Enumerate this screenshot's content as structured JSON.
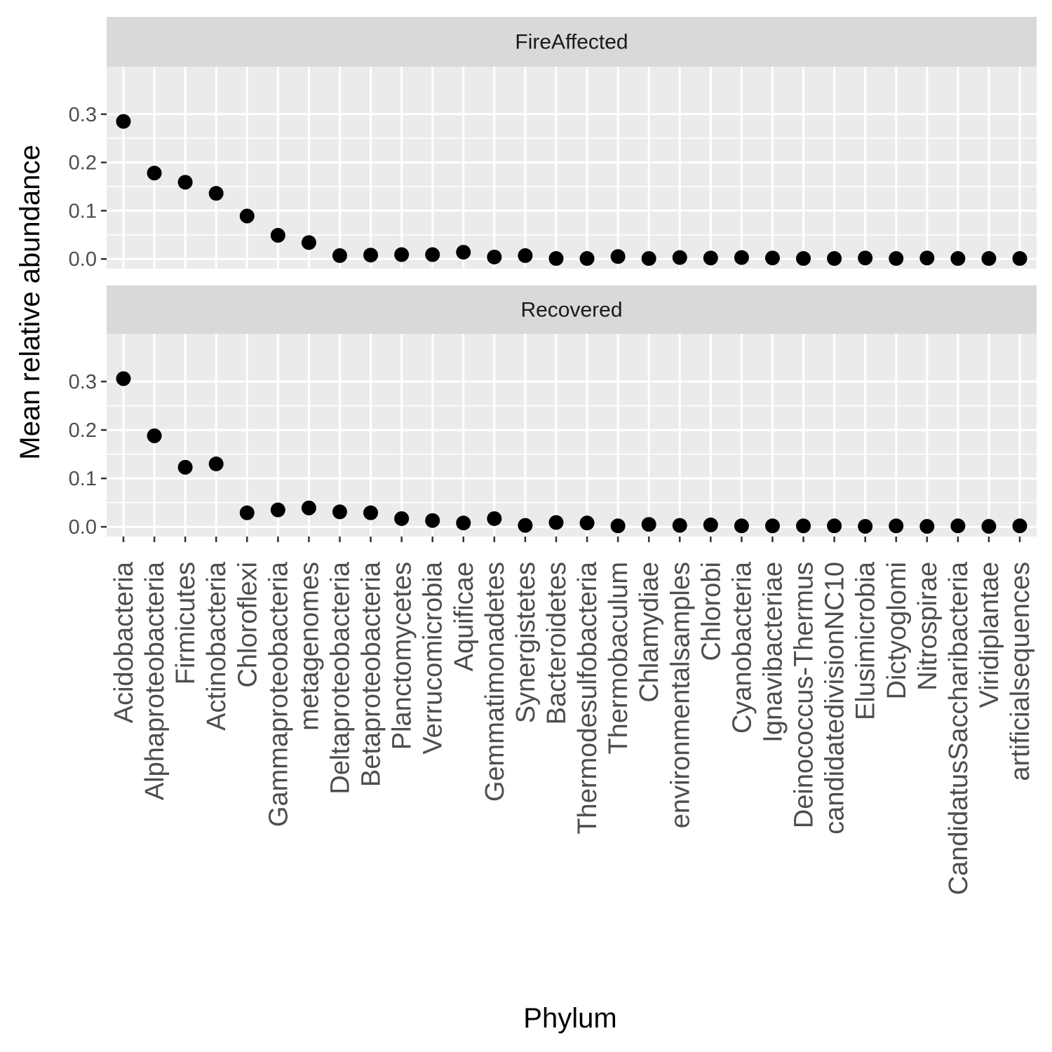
{
  "chart_data": {
    "type": "scatter",
    "facet_layout": "rows",
    "xlabel": "Phylum",
    "ylabel": "Mean relative abundance",
    "ylim": [
      -0.02,
      0.3985
    ],
    "yticks": [
      0.0,
      0.1,
      0.2,
      0.3
    ],
    "grid": true,
    "legend": "none",
    "categories": [
      "Acidobacteria",
      "Alphaproteobacteria",
      "Firmicutes",
      "Actinobacteria",
      "Chloroflexi",
      "Gammaproteobacteria",
      "metagenomes",
      "Deltaproteobacteria",
      "Betaproteobacteria",
      "Planctomycetes",
      "Verrucomicrobia",
      "Aquificae",
      "Gemmatimonadetes",
      "Synergistetes",
      "Bacteroidetes",
      "Thermodesulfobacteria",
      "Thermobaculum",
      "Chlamydiae",
      "environmentalsamples",
      "Chlorobi",
      "Cyanobacteria",
      "Ignavibacteriae",
      "Deinococcus-Thermus",
      "candidatedivisionNC10",
      "Elusimicrobia",
      "Dictyoglomi",
      "Nitrospirae",
      "CandidatusSaccharibacteria",
      "Viridiplantae",
      "artificialsequences"
    ],
    "series": [
      {
        "name": "FireAffected",
        "values": [
          0.285,
          0.178,
          0.159,
          0.136,
          0.089,
          0.049,
          0.034,
          0.007,
          0.008,
          0.009,
          0.009,
          0.014,
          0.004,
          0.007,
          0.001,
          0.001,
          0.005,
          0.001,
          0.003,
          0.002,
          0.003,
          0.002,
          0.001,
          0.001,
          0.002,
          0.001,
          0.002,
          0.001,
          0.001,
          0.001
        ]
      },
      {
        "name": "Recovered",
        "values": [
          0.306,
          0.188,
          0.123,
          0.13,
          0.029,
          0.035,
          0.039,
          0.031,
          0.029,
          0.017,
          0.013,
          0.008,
          0.017,
          0.003,
          0.009,
          0.008,
          0.002,
          0.005,
          0.003,
          0.004,
          0.002,
          0.002,
          0.002,
          0.002,
          0.001,
          0.002,
          0.001,
          0.002,
          0.001,
          0.002
        ]
      }
    ],
    "colors": {
      "panel_background": "#ebebeb",
      "strip_background": "#d9d9d9",
      "grid": "#ffffff",
      "point": "#000000",
      "tick_label": "#4d4d4d",
      "tick_mark": "#333333"
    }
  }
}
